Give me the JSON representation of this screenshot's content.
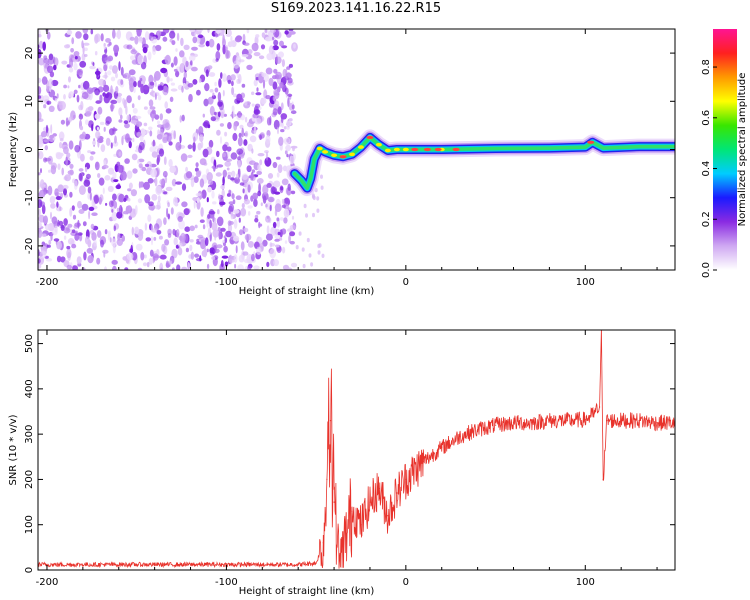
{
  "title": "S169.2023.141.16.22.R15",
  "chart_data": [
    {
      "type": "heatmap",
      "xlabel": "Height of straight line (km)",
      "ylabel": "Frequency (Hz)",
      "xlim": [
        -205,
        150
      ],
      "ylim": [
        -25,
        25
      ],
      "x_ticks": [
        -200,
        -100,
        0,
        100
      ],
      "y_ticks": [
        -20,
        -10,
        0,
        10,
        20
      ],
      "colorbar": {
        "label": "Normalized spectral amplitude",
        "range": [
          0,
          0.95
        ],
        "ticks": [
          "0.0",
          "0.2",
          "0.4",
          "0.6",
          "0.8"
        ],
        "colors": [
          "#ffffff",
          "#cfa8f2",
          "#8a2be2",
          "#1a1aff",
          "#00ccff",
          "#00e676",
          "#39e600",
          "#ffff00",
          "#ff9900",
          "#ff2020",
          "#ff1493"
        ]
      },
      "noise_region_x": [
        -205,
        -62
      ],
      "ridge_track": [
        {
          "x": -62,
          "f": -5.0
        },
        {
          "x": -58,
          "f": -6.5
        },
        {
          "x": -55,
          "f": -8.0
        },
        {
          "x": -53,
          "f": -6.0
        },
        {
          "x": -51,
          "f": -2.0
        },
        {
          "x": -48,
          "f": 0.2
        },
        {
          "x": -45,
          "f": -0.5
        },
        {
          "x": -40,
          "f": -1.2
        },
        {
          "x": -35,
          "f": -1.5
        },
        {
          "x": -30,
          "f": -1.0
        },
        {
          "x": -25,
          "f": 0.5
        },
        {
          "x": -20,
          "f": 2.5
        },
        {
          "x": -15,
          "f": 1.0
        },
        {
          "x": -10,
          "f": -0.2
        },
        {
          "x": -5,
          "f": 0.0
        },
        {
          "x": 0,
          "f": 0.0
        },
        {
          "x": 20,
          "f": 0.0
        },
        {
          "x": 50,
          "f": 0.2
        },
        {
          "x": 80,
          "f": 0.3
        },
        {
          "x": 100,
          "f": 0.5
        },
        {
          "x": 104,
          "f": 1.5
        },
        {
          "x": 110,
          "f": 0.3
        },
        {
          "x": 130,
          "f": 0.6
        },
        {
          "x": 150,
          "f": 0.6
        }
      ]
    },
    {
      "type": "line",
      "xlabel": "Height of straight line (km)",
      "ylabel": "SNR (10 * v/v)",
      "xlim": [
        -205,
        150
      ],
      "ylim": [
        0,
        530
      ],
      "x_ticks": [
        -200,
        -100,
        0,
        100
      ],
      "y_ticks": [
        0,
        100,
        200,
        300,
        400,
        500
      ],
      "color": "#e8322b",
      "series": [
        {
          "values": [
            {
              "x": -205,
              "y": 12
            },
            {
              "x": -150,
              "y": 12
            },
            {
              "x": -100,
              "y": 12
            },
            {
              "x": -60,
              "y": 12
            },
            {
              "x": -50,
              "y": 15
            },
            {
              "x": -46,
              "y": 60
            },
            {
              "x": -44,
              "y": 200
            },
            {
              "x": -42,
              "y": 330
            },
            {
              "x": -40,
              "y": 150
            },
            {
              "x": -37,
              "y": 20
            },
            {
              "x": -33,
              "y": 80
            },
            {
              "x": -30,
              "y": 130
            },
            {
              "x": -25,
              "y": 100
            },
            {
              "x": -20,
              "y": 150
            },
            {
              "x": -15,
              "y": 180
            },
            {
              "x": -10,
              "y": 120
            },
            {
              "x": -5,
              "y": 170
            },
            {
              "x": 0,
              "y": 200
            },
            {
              "x": 10,
              "y": 240
            },
            {
              "x": 20,
              "y": 270
            },
            {
              "x": 30,
              "y": 295
            },
            {
              "x": 40,
              "y": 310
            },
            {
              "x": 50,
              "y": 320
            },
            {
              "x": 60,
              "y": 325
            },
            {
              "x": 70,
              "y": 325
            },
            {
              "x": 80,
              "y": 330
            },
            {
              "x": 90,
              "y": 330
            },
            {
              "x": 100,
              "y": 332
            },
            {
              "x": 105,
              "y": 345
            },
            {
              "x": 108,
              "y": 360
            },
            {
              "x": 109,
              "y": 530
            },
            {
              "x": 110,
              "y": 200
            },
            {
              "x": 112,
              "y": 330
            },
            {
              "x": 120,
              "y": 330
            },
            {
              "x": 130,
              "y": 330
            },
            {
              "x": 140,
              "y": 325
            },
            {
              "x": 150,
              "y": 325
            }
          ]
        }
      ]
    }
  ]
}
